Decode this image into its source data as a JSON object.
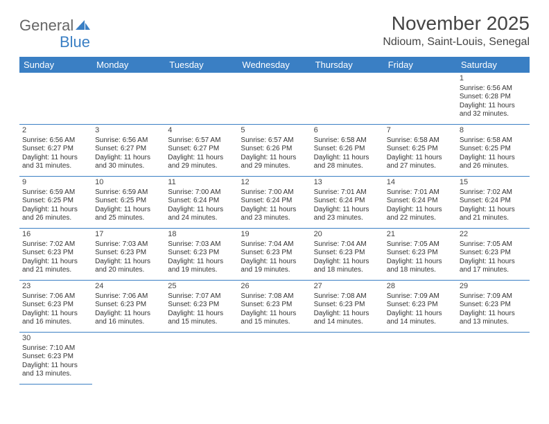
{
  "logo": {
    "general": "General",
    "blue": "Blue"
  },
  "title": "November 2025",
  "location": "Ndioum, Saint-Louis, Senegal",
  "colors": {
    "header_bg": "#3a7fc4",
    "header_text": "#ffffff",
    "rule": "#3a7fc4",
    "text": "#333333",
    "title_text": "#444444",
    "logo_gray": "#666666",
    "logo_blue": "#3a7fc4",
    "background": "#ffffff"
  },
  "day_names": [
    "Sunday",
    "Monday",
    "Tuesday",
    "Wednesday",
    "Thursday",
    "Friday",
    "Saturday"
  ],
  "weeks": [
    [
      null,
      null,
      null,
      null,
      null,
      null,
      {
        "n": "1",
        "sunrise": "6:56 AM",
        "sunset": "6:28 PM",
        "daylight": "11 hours and 32 minutes."
      }
    ],
    [
      {
        "n": "2",
        "sunrise": "6:56 AM",
        "sunset": "6:27 PM",
        "daylight": "11 hours and 31 minutes."
      },
      {
        "n": "3",
        "sunrise": "6:56 AM",
        "sunset": "6:27 PM",
        "daylight": "11 hours and 30 minutes."
      },
      {
        "n": "4",
        "sunrise": "6:57 AM",
        "sunset": "6:27 PM",
        "daylight": "11 hours and 29 minutes."
      },
      {
        "n": "5",
        "sunrise": "6:57 AM",
        "sunset": "6:26 PM",
        "daylight": "11 hours and 29 minutes."
      },
      {
        "n": "6",
        "sunrise": "6:58 AM",
        "sunset": "6:26 PM",
        "daylight": "11 hours and 28 minutes."
      },
      {
        "n": "7",
        "sunrise": "6:58 AM",
        "sunset": "6:25 PM",
        "daylight": "11 hours and 27 minutes."
      },
      {
        "n": "8",
        "sunrise": "6:58 AM",
        "sunset": "6:25 PM",
        "daylight": "11 hours and 26 minutes."
      }
    ],
    [
      {
        "n": "9",
        "sunrise": "6:59 AM",
        "sunset": "6:25 PM",
        "daylight": "11 hours and 26 minutes."
      },
      {
        "n": "10",
        "sunrise": "6:59 AM",
        "sunset": "6:25 PM",
        "daylight": "11 hours and 25 minutes."
      },
      {
        "n": "11",
        "sunrise": "7:00 AM",
        "sunset": "6:24 PM",
        "daylight": "11 hours and 24 minutes."
      },
      {
        "n": "12",
        "sunrise": "7:00 AM",
        "sunset": "6:24 PM",
        "daylight": "11 hours and 23 minutes."
      },
      {
        "n": "13",
        "sunrise": "7:01 AM",
        "sunset": "6:24 PM",
        "daylight": "11 hours and 23 minutes."
      },
      {
        "n": "14",
        "sunrise": "7:01 AM",
        "sunset": "6:24 PM",
        "daylight": "11 hours and 22 minutes."
      },
      {
        "n": "15",
        "sunrise": "7:02 AM",
        "sunset": "6:24 PM",
        "daylight": "11 hours and 21 minutes."
      }
    ],
    [
      {
        "n": "16",
        "sunrise": "7:02 AM",
        "sunset": "6:23 PM",
        "daylight": "11 hours and 21 minutes."
      },
      {
        "n": "17",
        "sunrise": "7:03 AM",
        "sunset": "6:23 PM",
        "daylight": "11 hours and 20 minutes."
      },
      {
        "n": "18",
        "sunrise": "7:03 AM",
        "sunset": "6:23 PM",
        "daylight": "11 hours and 19 minutes."
      },
      {
        "n": "19",
        "sunrise": "7:04 AM",
        "sunset": "6:23 PM",
        "daylight": "11 hours and 19 minutes."
      },
      {
        "n": "20",
        "sunrise": "7:04 AM",
        "sunset": "6:23 PM",
        "daylight": "11 hours and 18 minutes."
      },
      {
        "n": "21",
        "sunrise": "7:05 AM",
        "sunset": "6:23 PM",
        "daylight": "11 hours and 18 minutes."
      },
      {
        "n": "22",
        "sunrise": "7:05 AM",
        "sunset": "6:23 PM",
        "daylight": "11 hours and 17 minutes."
      }
    ],
    [
      {
        "n": "23",
        "sunrise": "7:06 AM",
        "sunset": "6:23 PM",
        "daylight": "11 hours and 16 minutes."
      },
      {
        "n": "24",
        "sunrise": "7:06 AM",
        "sunset": "6:23 PM",
        "daylight": "11 hours and 16 minutes."
      },
      {
        "n": "25",
        "sunrise": "7:07 AM",
        "sunset": "6:23 PM",
        "daylight": "11 hours and 15 minutes."
      },
      {
        "n": "26",
        "sunrise": "7:08 AM",
        "sunset": "6:23 PM",
        "daylight": "11 hours and 15 minutes."
      },
      {
        "n": "27",
        "sunrise": "7:08 AM",
        "sunset": "6:23 PM",
        "daylight": "11 hours and 14 minutes."
      },
      {
        "n": "28",
        "sunrise": "7:09 AM",
        "sunset": "6:23 PM",
        "daylight": "11 hours and 14 minutes."
      },
      {
        "n": "29",
        "sunrise": "7:09 AM",
        "sunset": "6:23 PM",
        "daylight": "11 hours and 13 minutes."
      }
    ],
    [
      {
        "n": "30",
        "sunrise": "7:10 AM",
        "sunset": "6:23 PM",
        "daylight": "11 hours and 13 minutes."
      },
      null,
      null,
      null,
      null,
      null,
      null
    ]
  ],
  "labels": {
    "sunrise": "Sunrise: ",
    "sunset": "Sunset: ",
    "daylight": "Daylight: "
  }
}
